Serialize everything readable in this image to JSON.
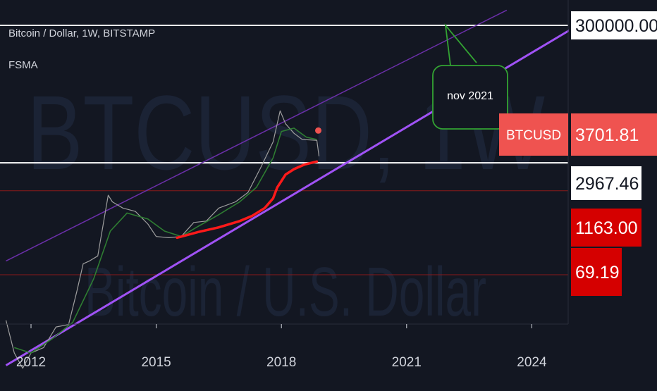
{
  "chart_data": {
    "type": "line",
    "symbol": "Bitcoin / Dollar, 1W, BITSTAMP",
    "indicator": "FSMA",
    "watermark_symbol": "BTCUSD, 1W",
    "watermark_name": "Bitcoin / U.S. Dollar",
    "x_ticks": [
      "2012",
      "2015",
      "2018",
      "2021",
      "2024"
    ],
    "y_scale": "log",
    "price_labels": [
      {
        "text": "300000.00",
        "value": 300000,
        "bg": "#ffffff",
        "fg": "#131722"
      },
      {
        "text": "3701.81",
        "value": 3701.81,
        "bg": "#ef5350",
        "fg": "#ffffff",
        "tag": "BTCUSD"
      },
      {
        "text": "2967.46",
        "value": 2967.46,
        "bg": "#ffffff",
        "fg": "#131722"
      },
      {
        "text": "1163.00",
        "value": 1163,
        "bg": "#d50000",
        "fg": "#ffffff"
      },
      {
        "text": "69.19",
        "value": 69.19,
        "bg": "#d50000",
        "fg": "#ffffff"
      }
    ],
    "annotation": "nov 2021",
    "price_series": {
      "name": "BTCUSD",
      "x": [
        2011.4,
        2011.6,
        2011.8,
        2012.0,
        2012.3,
        2012.6,
        2012.9,
        2013.1,
        2013.25,
        2013.4,
        2013.6,
        2013.85,
        2013.95,
        2014.2,
        2014.5,
        2014.8,
        2015.0,
        2015.3,
        2015.6,
        2015.9,
        2016.2,
        2016.5,
        2016.9,
        2017.2,
        2017.5,
        2017.8,
        2017.97,
        2018.1,
        2018.3,
        2018.5,
        2018.7,
        2018.85,
        2018.9
      ],
      "y": [
        15,
        5,
        3,
        5,
        6,
        12,
        13,
        40,
        100,
        110,
        130,
        1000,
        800,
        650,
        580,
        380,
        250,
        240,
        250,
        400,
        420,
        650,
        800,
        1100,
        2500,
        6000,
        17000,
        11000,
        8000,
        6500,
        6400,
        6300,
        3700
      ]
    },
    "ma_series": {
      "name": "FSMA",
      "x": [
        2011.6,
        2012.0,
        2012.5,
        2013.0,
        2013.5,
        2013.9,
        2014.3,
        2014.8,
        2015.2,
        2015.6,
        2016.0,
        2016.5,
        2017.0,
        2017.4,
        2017.8,
        2018.0,
        2018.3,
        2018.6,
        2018.85
      ],
      "y": [
        6,
        5,
        8,
        14,
        60,
        300,
        550,
        450,
        300,
        250,
        350,
        520,
        800,
        1300,
        3500,
        8500,
        9500,
        7000,
        6500
      ]
    },
    "red_series": {
      "name": "",
      "x": [
        2015.5,
        2016.0,
        2016.5,
        2017.0,
        2017.3,
        2017.6,
        2017.8,
        2017.9,
        2018.1,
        2018.3,
        2018.55,
        2018.85
      ],
      "y": [
        240,
        290,
        340,
        420,
        500,
        650,
        900,
        1300,
        2000,
        2400,
        2800,
        3100
      ]
    },
    "trendlines": [
      {
        "name": "support",
        "x": [
          2011.4,
          2025.1
        ],
        "y": [
          3.3,
          300000
        ],
        "color": "#a052f5"
      },
      {
        "name": "upper",
        "x": [
          2011.4,
          2023.4
        ],
        "y": [
          110,
          500000
        ],
        "color": "#6a2fa8"
      }
    ],
    "hlines": [
      {
        "value": 300000,
        "color": "#ffffff"
      },
      {
        "value": 2967.46,
        "color": "#ffffff"
      },
      {
        "value": 1163,
        "color": "#8a1a1a"
      },
      {
        "value": 69.19,
        "color": "#8a1a1a"
      }
    ],
    "colors": {
      "price": "#9e9e9e",
      "ma": "#2e7d32",
      "red": "#ff1a1a",
      "callout": "#33a333",
      "last_dot": "#ef5350",
      "background": "#131722"
    }
  }
}
